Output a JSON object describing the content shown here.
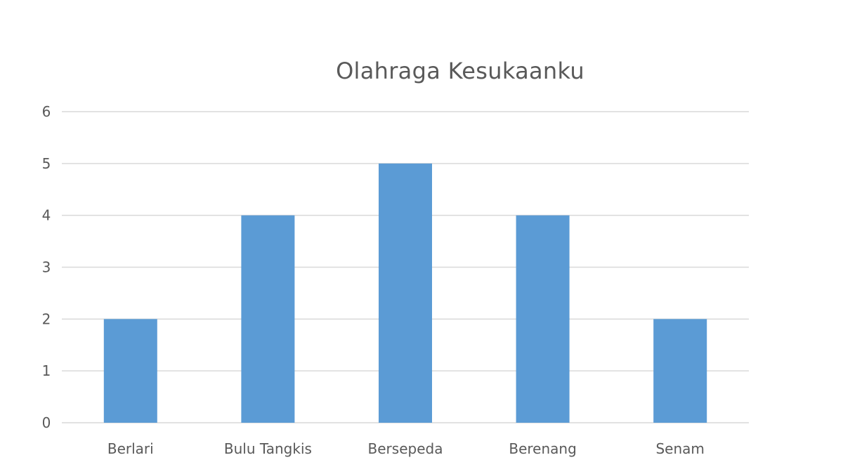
{
  "chart_data": {
    "type": "bar",
    "title": "Olahraga Kesukaanku",
    "xlabel": "",
    "ylabel": "",
    "categories": [
      "Berlari",
      "Bulu Tangkis",
      "Bersepeda",
      "Berenang",
      "Senam"
    ],
    "values": [
      2,
      4,
      5,
      4,
      2
    ],
    "ylim": [
      0,
      6
    ],
    "yticks": [
      "0",
      "1",
      "2",
      "3",
      "4",
      "5",
      "6"
    ],
    "grid": true,
    "legend": "none",
    "bar_color": "#5b9bd5",
    "grid_color": "#d9d9d9",
    "text_color": "#595959"
  }
}
